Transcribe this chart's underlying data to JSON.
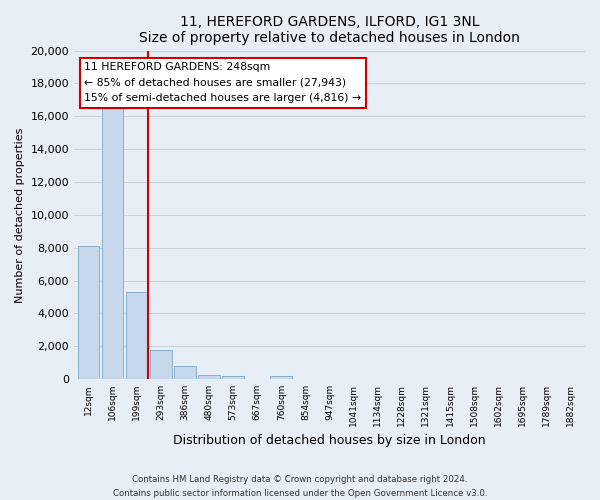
{
  "title": "11, HEREFORD GARDENS, ILFORD, IG1 3NL",
  "subtitle": "Size of property relative to detached houses in London",
  "xlabel": "Distribution of detached houses by size in London",
  "ylabel": "Number of detached properties",
  "bar_labels": [
    "12sqm",
    "106sqm",
    "199sqm",
    "293sqm",
    "386sqm",
    "480sqm",
    "573sqm",
    "667sqm",
    "760sqm",
    "854sqm",
    "947sqm",
    "1041sqm",
    "1134sqm",
    "1228sqm",
    "1321sqm",
    "1415sqm",
    "1508sqm",
    "1602sqm",
    "1695sqm",
    "1789sqm",
    "1882sqm"
  ],
  "bar_values": [
    8100,
    16500,
    5300,
    1750,
    800,
    280,
    210,
    0,
    180,
    0,
    0,
    0,
    0,
    0,
    0,
    0,
    0,
    0,
    0,
    0,
    0
  ],
  "bar_fill_color": "#c8d8ec",
  "bar_edge_color": "#8ab0d0",
  "vline_x": 2.48,
  "vline_color": "#cc0000",
  "ylim": [
    0,
    20000
  ],
  "yticks": [
    0,
    2000,
    4000,
    6000,
    8000,
    10000,
    12000,
    14000,
    16000,
    18000,
    20000
  ],
  "annotation_title": "11 HEREFORD GARDENS: 248sqm",
  "annotation_line1": "← 85% of detached houses are smaller (27,943)",
  "annotation_line2": "15% of semi-detached houses are larger (4,816) →",
  "footer_line1": "Contains HM Land Registry data © Crown copyright and database right 2024.",
  "footer_line2": "Contains public sector information licensed under the Open Government Licence v3.0.",
  "fig_bg_color": "#e8eef5",
  "plot_bg_color": "#e8eef5",
  "grid_color": "#c8d0dc"
}
